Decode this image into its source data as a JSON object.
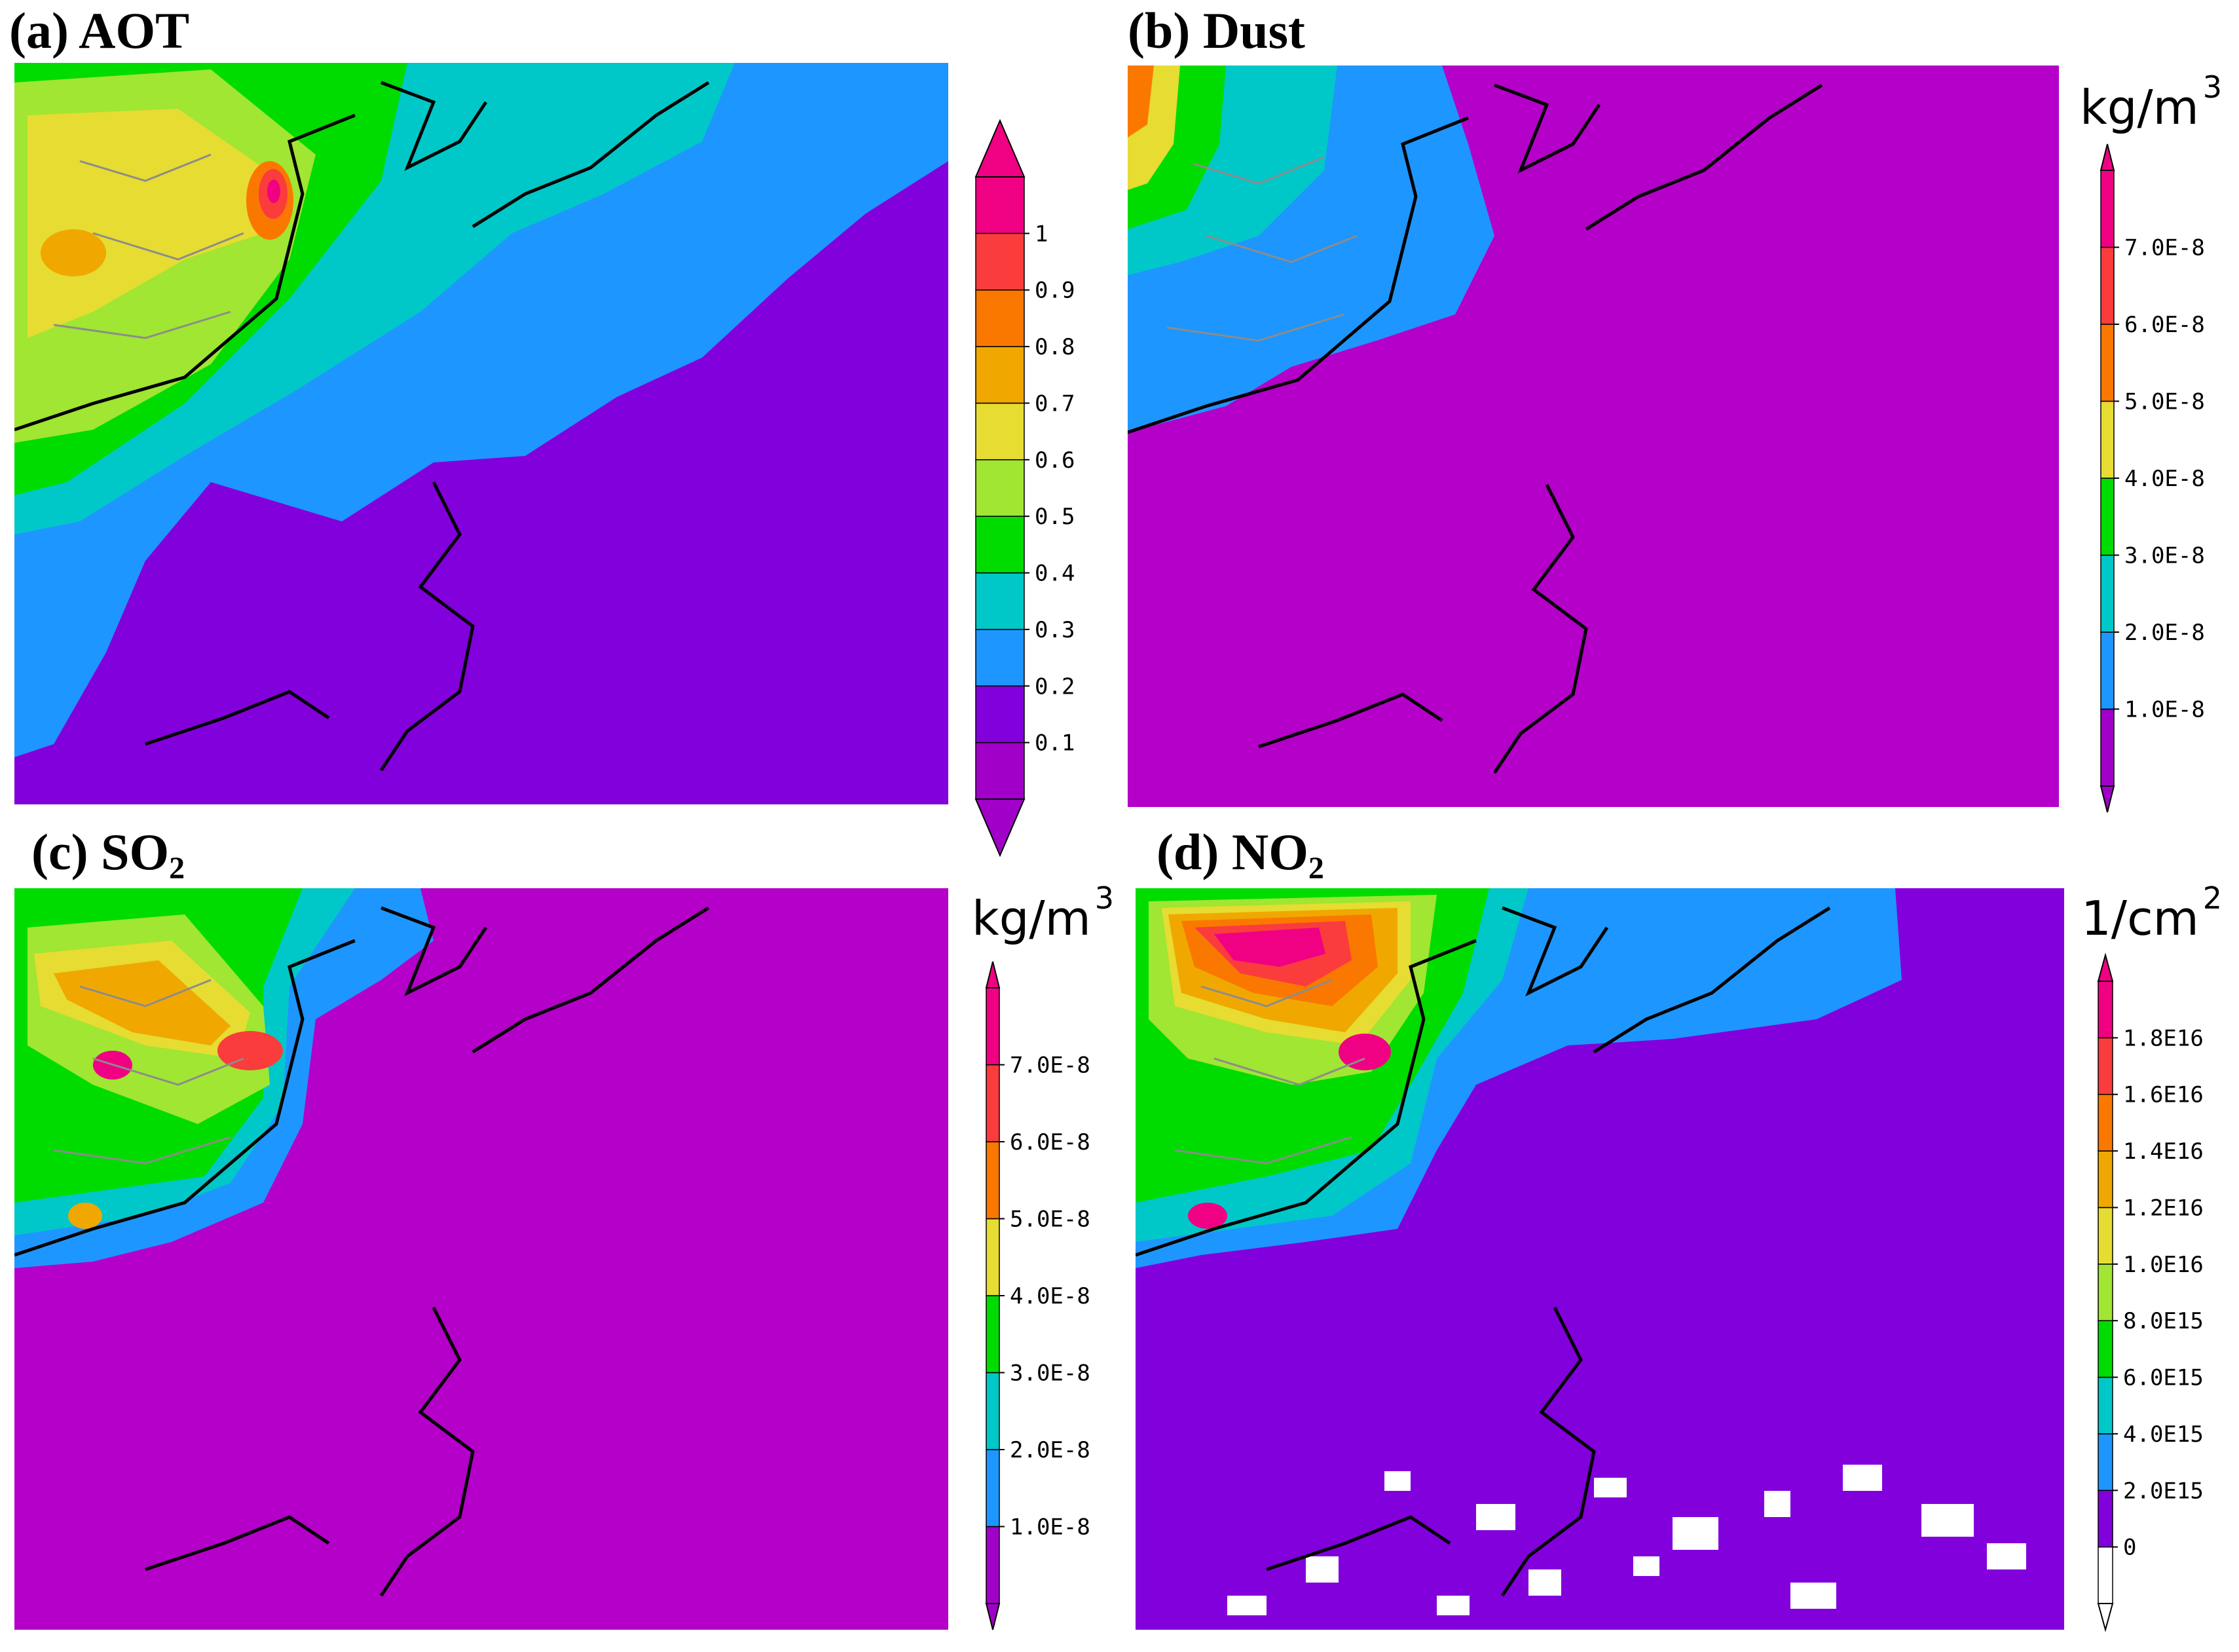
{
  "panels": [
    {
      "id": "a",
      "letter": "a",
      "title": "AOT",
      "title_sub": "",
      "unit": "",
      "unit_sup": "",
      "colorbar": {
        "ticks": [
          "1",
          "0.9",
          "0.8",
          "0.7",
          "0.6",
          "0.5",
          "0.4",
          "0.3",
          "0.2",
          "0.1"
        ],
        "colors": [
          "#a000c8",
          "#8200dc",
          "#1e96ff",
          "#00c8c8",
          "#00dc00",
          "#a0e632",
          "#e6dc32",
          "#f0a800",
          "#fa7800",
          "#fa3c3c",
          "#f00082"
        ],
        "extend": "both-triangles"
      }
    },
    {
      "id": "b",
      "letter": "b",
      "title": "Dust",
      "title_sub": "",
      "unit": "kg/m",
      "unit_sup": "3",
      "colorbar": {
        "ticks": [
          "7.0E-8",
          "6.0E-8",
          "5.0E-8",
          "4.0E-8",
          "3.0E-8",
          "2.0E-8",
          "1.0E-8"
        ],
        "colors": [
          "#a000c8",
          "#1e96ff",
          "#00c8c8",
          "#00dc00",
          "#e6dc32",
          "#fa7800",
          "#fa3c3c",
          "#f00082"
        ],
        "extend": "thin-spikes"
      }
    },
    {
      "id": "c",
      "letter": "c",
      "title": "SO",
      "title_sub": "2",
      "unit": "kg/m",
      "unit_sup": "3",
      "colorbar": {
        "ticks": [
          "7.0E-8",
          "6.0E-8",
          "5.0E-8",
          "4.0E-8",
          "3.0E-8",
          "2.0E-8",
          "1.0E-8"
        ],
        "colors": [
          "#a000c8",
          "#1e96ff",
          "#00c8c8",
          "#00dc00",
          "#e6dc32",
          "#fa7800",
          "#fa3c3c",
          "#f00082"
        ],
        "extend": "thin-spikes"
      }
    },
    {
      "id": "d",
      "letter": "d",
      "title": "NO",
      "title_sub": "2",
      "unit": "1/cm",
      "unit_sup": "2",
      "colorbar": {
        "ticks": [
          "1.8E16",
          "1.6E16",
          "1.4E16",
          "1.2E16",
          "1.0E16",
          "8.0E15",
          "6.0E15",
          "4.0E15",
          "2.0E15",
          "0"
        ],
        "colors": [
          "#ffffff",
          "#8200dc",
          "#1e96ff",
          "#00c8c8",
          "#00dc00",
          "#a0e632",
          "#e6dc32",
          "#f0a800",
          "#fa7800",
          "#fa3c3c",
          "#f00082"
        ],
        "extend": "thin-spikes"
      }
    }
  ],
  "colors": {
    "background_magenta": "#b400c8",
    "background_purple": "#8200dc",
    "coastline": "#000000",
    "borders": "#8c8c8c"
  }
}
